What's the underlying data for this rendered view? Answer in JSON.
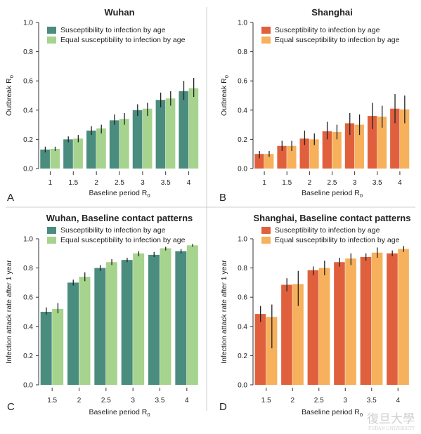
{
  "chart_data": [
    {
      "type": "bar",
      "panel_label": "A",
      "title": "Wuhan",
      "xlabel": "Baseline period R",
      "xlabel_sub": "0",
      "ylabel": "Outbreak R",
      "ylabel_sub": "0",
      "ylim": [
        0,
        1.0
      ],
      "yticks": [
        "0.0",
        "0.2",
        "0.4",
        "0.6",
        "0.8",
        "1.0"
      ],
      "categories": [
        "1",
        "1.5",
        "2",
        "2.5",
        "3",
        "3.5",
        "4"
      ],
      "legend_position": "top-left",
      "series": [
        {
          "name": "Susceptibility to infection by age",
          "color": "#4a8c7e",
          "values": [
            0.13,
            0.2,
            0.26,
            0.33,
            0.4,
            0.47,
            0.53
          ],
          "err_low": [
            0.11,
            0.18,
            0.23,
            0.3,
            0.36,
            0.42,
            0.47
          ],
          "err_high": [
            0.15,
            0.22,
            0.29,
            0.37,
            0.44,
            0.52,
            0.6
          ]
        },
        {
          "name": "Equal susceptibility to infection by age",
          "color": "#a6d38d",
          "values": [
            0.135,
            0.205,
            0.275,
            0.34,
            0.41,
            0.48,
            0.55
          ],
          "err_low": [
            0.12,
            0.18,
            0.24,
            0.3,
            0.36,
            0.43,
            0.49
          ],
          "err_high": [
            0.15,
            0.23,
            0.3,
            0.38,
            0.45,
            0.53,
            0.62
          ]
        }
      ]
    },
    {
      "type": "bar",
      "panel_label": "B",
      "title": "Shanghai",
      "xlabel": "Baseline period R",
      "xlabel_sub": "0",
      "ylabel": "Outbreak R",
      "ylabel_sub": "0",
      "ylim": [
        0,
        1.0
      ],
      "yticks": [
        "0.0",
        "0.2",
        "0.4",
        "0.6",
        "0.8",
        "1.0"
      ],
      "categories": [
        "1",
        "1.5",
        "2",
        "2.5",
        "3",
        "3.5",
        "4"
      ],
      "legend_position": "top-left",
      "series": [
        {
          "name": "Susceptibility to infection by age",
          "color": "#e0603e",
          "values": [
            0.1,
            0.155,
            0.205,
            0.255,
            0.31,
            0.36,
            0.41
          ],
          "err_low": [
            0.07,
            0.12,
            0.16,
            0.2,
            0.23,
            0.27,
            0.31
          ],
          "err_high": [
            0.12,
            0.19,
            0.26,
            0.32,
            0.38,
            0.45,
            0.51
          ]
        },
        {
          "name": "Equal susceptibility to infection by age",
          "color": "#f7b05b",
          "values": [
            0.1,
            0.155,
            0.2,
            0.25,
            0.3,
            0.355,
            0.405
          ],
          "err_low": [
            0.08,
            0.12,
            0.16,
            0.2,
            0.23,
            0.28,
            0.31
          ],
          "err_high": [
            0.12,
            0.19,
            0.24,
            0.3,
            0.37,
            0.43,
            0.5
          ]
        }
      ]
    },
    {
      "type": "bar",
      "panel_label": "C",
      "title": "Wuhan, Baseline contact patterns",
      "xlabel": "Baseline period R",
      "xlabel_sub": "0",
      "ylabel": "Infection attack rate after 1 year",
      "ylabel_sub": "",
      "ylim": [
        0,
        1.0
      ],
      "yticks": [
        "0.0",
        "0.2",
        "0.4",
        "0.6",
        "0.8",
        "1.0"
      ],
      "categories": [
        "1.5",
        "2",
        "2.5",
        "3",
        "3.5",
        "4"
      ],
      "legend_position": "top-left",
      "series": [
        {
          "name": "Susceptibility to infection by age",
          "color": "#4a8c7e",
          "values": [
            0.5,
            0.7,
            0.8,
            0.855,
            0.89,
            0.915
          ],
          "err_low": [
            0.48,
            0.68,
            0.78,
            0.84,
            0.875,
            0.9
          ],
          "err_high": [
            0.53,
            0.72,
            0.82,
            0.87,
            0.91,
            0.93
          ]
        },
        {
          "name": "Equal susceptibility to infection by age",
          "color": "#a6d38d",
          "values": [
            0.52,
            0.74,
            0.84,
            0.9,
            0.935,
            0.955
          ],
          "err_low": [
            0.49,
            0.71,
            0.82,
            0.88,
            0.92,
            0.945
          ],
          "err_high": [
            0.56,
            0.77,
            0.86,
            0.915,
            0.945,
            0.965
          ]
        }
      ]
    },
    {
      "type": "bar",
      "panel_label": "D",
      "title": "Shanghai, Baseline contact patterns",
      "xlabel": "Baseline period R",
      "xlabel_sub": "0",
      "ylabel": "Infection attack rate after 1 year",
      "ylabel_sub": "",
      "ylim": [
        0,
        1.0
      ],
      "yticks": [
        "0.0",
        "0.2",
        "0.4",
        "0.6",
        "0.8",
        "1.0"
      ],
      "categories": [
        "1.5",
        "2",
        "2.5",
        "3",
        "3.5",
        "4"
      ],
      "legend_position": "top-left",
      "series": [
        {
          "name": "Susceptibility to infection by age",
          "color": "#e0603e",
          "values": [
            0.485,
            0.685,
            0.785,
            0.84,
            0.875,
            0.9
          ],
          "err_low": [
            0.43,
            0.64,
            0.75,
            0.81,
            0.85,
            0.88
          ],
          "err_high": [
            0.54,
            0.73,
            0.81,
            0.87,
            0.9,
            0.92
          ]
        },
        {
          "name": "Equal susceptibility to infection by age",
          "color": "#f7b05b",
          "values": [
            0.465,
            0.69,
            0.8,
            0.865,
            0.905,
            0.93
          ],
          "err_low": [
            0.25,
            0.54,
            0.75,
            0.82,
            0.87,
            0.91
          ],
          "err_high": [
            0.55,
            0.78,
            0.85,
            0.9,
            0.94,
            0.95
          ]
        }
      ]
    }
  ],
  "watermark": {
    "text": "復旦大學",
    "subtext": "FUDAN UNIVERSITY"
  }
}
